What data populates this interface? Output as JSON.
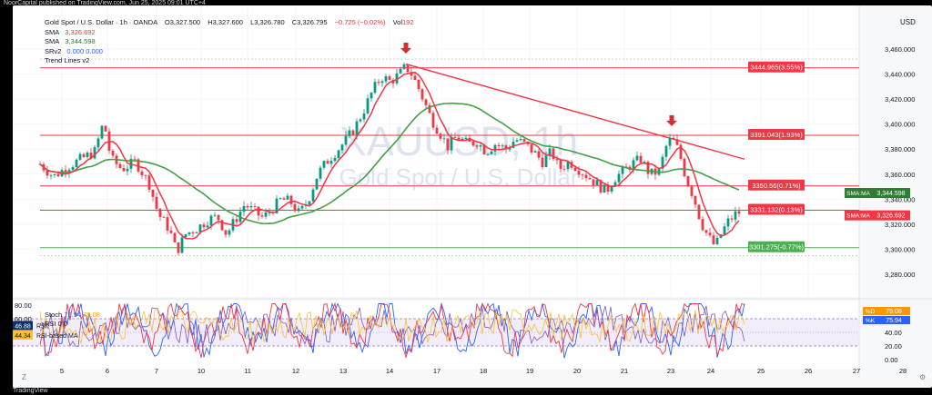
{
  "header": {
    "publish_text": "NoorCapital published on TradingView.com, Jun 25, 2025 09:01 UTC+4"
  },
  "footer": {
    "brand": "TradingView"
  },
  "ohlc": {
    "symbol_line": "Gold Spot / U.S. Dollar · 1h · OANDA",
    "open": "O3,327.500",
    "high": "H3,327.600",
    "low": "L3,326.780",
    "close": "C3,326.795",
    "change": "−0.725 (−0.02%)",
    "volume_label": "Vol",
    "volume": "192"
  },
  "indicators": [
    {
      "name": "SMA",
      "value": "3,326.692"
    },
    {
      "name": "SMA",
      "value": "3,344.598"
    },
    {
      "name": "SRv2",
      "value": "0.000  0.000"
    },
    {
      "name": "Trend Lines v2",
      "value": ""
    }
  ],
  "currency": "USD",
  "watermark": {
    "symbol": "XAUUSD, 1h",
    "name": "Gold Spot / U.S. Dollar"
  },
  "price_axis": {
    "ticks": [
      "3,460.000",
      "3,440.000",
      "3,420.000",
      "3,400.000",
      "3,380.000",
      "3,360.000",
      "3,340.000",
      "3,320.000",
      "3,300.000",
      "3,280.000"
    ]
  },
  "date_axis": {
    "ticks": [
      "5",
      "6",
      "7",
      "10",
      "11",
      "12",
      "13",
      "14",
      "17",
      "18",
      "19",
      "20",
      "21",
      "23",
      "24",
      "25",
      "26",
      "27",
      "28"
    ]
  },
  "levels": [
    {
      "label": "3444.965(3.55%)",
      "color": "#f23645"
    },
    {
      "label": "3391.043(1.93%)",
      "color": "#f23645"
    },
    {
      "label": "3350.56(0.71%)",
      "color": "#f23645"
    },
    {
      "label": "3331.132(0.13%)",
      "color": "#f23645"
    },
    {
      "label": "3301.275(-0.77%)",
      "color": "#4caf50"
    }
  ],
  "axis_badges": [
    {
      "label": "SMA:MA",
      "value": "3,344.598",
      "color": "#2e7d32"
    },
    {
      "label": "SMA:MA",
      "value": "3,326.692",
      "color": "#f23645"
    }
  ],
  "stoch": {
    "title": "Stoch",
    "k": "75.94",
    "d": "79.08",
    "rsi_label": "RSI",
    "rsi_extra": "0  0",
    "rsi_value": "46.88",
    "rsi_name": "RSI",
    "rsi_ma_value": "44.34",
    "rsi_ma_name": "RSI-based MA",
    "axis_ticks": [
      "80.00",
      "60.00",
      "40.00",
      "20.00",
      "0.00"
    ],
    "badges": [
      {
        "label": "%D",
        "value": "79.08",
        "color": "#ff9800"
      },
      {
        "label": "%K",
        "value": "75.94",
        "color": "#2962ff"
      }
    ]
  },
  "colors": {
    "bull": "#089981",
    "bear": "#f23645",
    "sma_fast": "#f23645",
    "sma_slow": "#43a047",
    "trend": "#f23645",
    "support": "#4caf50"
  }
}
